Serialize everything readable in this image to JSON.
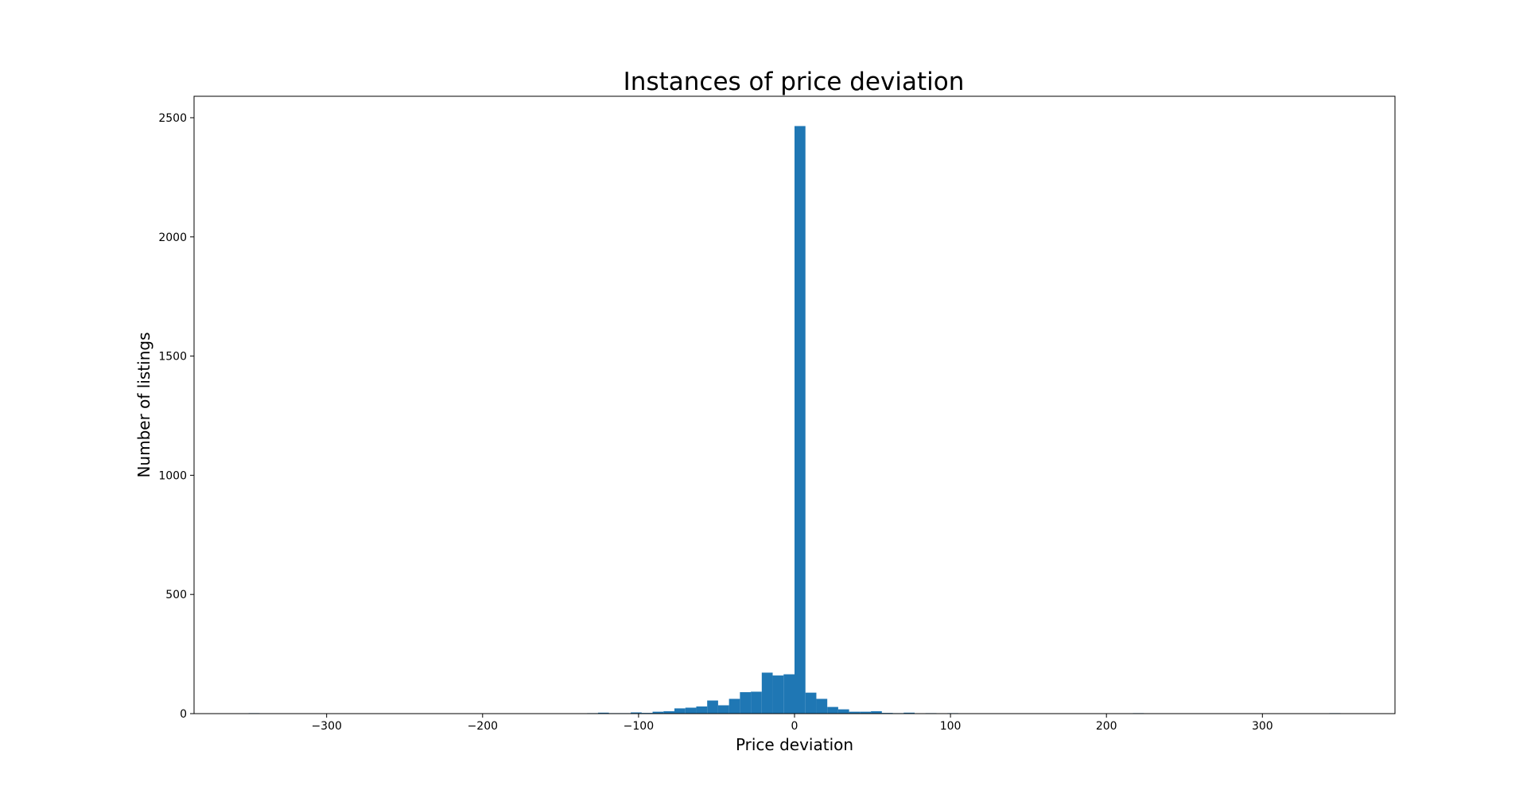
{
  "chart_data": {
    "type": "bar",
    "title": "Instances of price deviation",
    "xlabel": "Price deviation",
    "ylabel": "Number of listings",
    "xlim": [
      -385,
      385
    ],
    "ylim": [
      0,
      2590
    ],
    "xticks": [
      -300,
      -200,
      -100,
      0,
      100,
      200,
      300
    ],
    "xtick_labels": [
      "−300",
      "−200",
      "−100",
      "0",
      "100",
      "200",
      "300"
    ],
    "yticks": [
      0,
      500,
      1000,
      1500,
      2000,
      2500
    ],
    "ytick_labels": [
      "0",
      "500",
      "1000",
      "1500",
      "2000",
      "2500"
    ],
    "grid": false,
    "bar_color": "#1f77b4",
    "bin_width": 7,
    "bins": [
      {
        "x": -350,
        "y": 2
      },
      {
        "x": -301,
        "y": 1
      },
      {
        "x": -294,
        "y": 1
      },
      {
        "x": -259,
        "y": 1
      },
      {
        "x": -210,
        "y": 1
      },
      {
        "x": -189,
        "y": 1
      },
      {
        "x": -182,
        "y": 1
      },
      {
        "x": -175,
        "y": 1
      },
      {
        "x": -161,
        "y": 1
      },
      {
        "x": -154,
        "y": 1
      },
      {
        "x": -147,
        "y": 1
      },
      {
        "x": -140,
        "y": 1
      },
      {
        "x": -133,
        "y": 2
      },
      {
        "x": -126,
        "y": 4
      },
      {
        "x": -119,
        "y": 2
      },
      {
        "x": -112,
        "y": 2
      },
      {
        "x": -105,
        "y": 5
      },
      {
        "x": -98,
        "y": 3
      },
      {
        "x": -91,
        "y": 8
      },
      {
        "x": -84,
        "y": 10
      },
      {
        "x": -77,
        "y": 22
      },
      {
        "x": -70,
        "y": 25
      },
      {
        "x": -63,
        "y": 30
      },
      {
        "x": -56,
        "y": 55
      },
      {
        "x": -49,
        "y": 35
      },
      {
        "x": -42,
        "y": 62
      },
      {
        "x": -35,
        "y": 90
      },
      {
        "x": -28,
        "y": 92
      },
      {
        "x": -21,
        "y": 172
      },
      {
        "x": -14,
        "y": 160
      },
      {
        "x": -7,
        "y": 165
      },
      {
        "x": 0,
        "y": 2465
      },
      {
        "x": 7,
        "y": 88
      },
      {
        "x": 14,
        "y": 62
      },
      {
        "x": 21,
        "y": 28
      },
      {
        "x": 28,
        "y": 18
      },
      {
        "x": 35,
        "y": 8
      },
      {
        "x": 42,
        "y": 8
      },
      {
        "x": 49,
        "y": 10
      },
      {
        "x": 56,
        "y": 3
      },
      {
        "x": 63,
        "y": 2
      },
      {
        "x": 70,
        "y": 4
      },
      {
        "x": 84,
        "y": 2
      },
      {
        "x": 91,
        "y": 1
      },
      {
        "x": 98,
        "y": 2
      },
      {
        "x": 112,
        "y": 1
      },
      {
        "x": 147,
        "y": 1
      },
      {
        "x": 175,
        "y": 1
      },
      {
        "x": 217,
        "y": 2
      },
      {
        "x": 343,
        "y": 2
      }
    ]
  }
}
